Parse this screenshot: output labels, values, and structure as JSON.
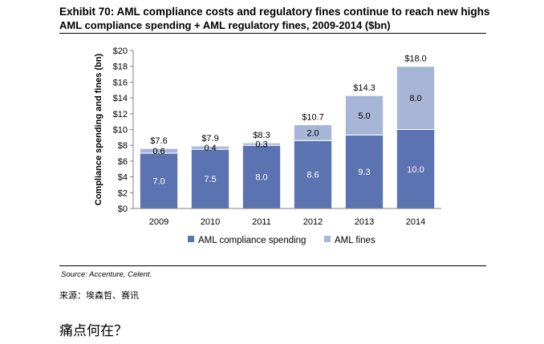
{
  "header": {
    "title": "Exhibit 70: AML compliance costs and regulatory fines continue to reach new highs",
    "subtitle": "AML compliance spending + AML regulatory fines, 2009-2014 ($bn)"
  },
  "chart_data": {
    "type": "bar",
    "stacked": true,
    "categories": [
      "2009",
      "2010",
      "2011",
      "2012",
      "2013",
      "2014"
    ],
    "series": [
      {
        "name": "AML compliance spending",
        "values": [
          7.0,
          7.5,
          8.0,
          8.6,
          9.3,
          10.0
        ],
        "labels": [
          "7.0",
          "7.5",
          "8.0",
          "8.6",
          "9.3",
          "10.0"
        ],
        "color": "#5b73b0"
      },
      {
        "name": "AML fines",
        "values": [
          0.6,
          0.4,
          0.3,
          2.0,
          5.0,
          8.0
        ],
        "labels": [
          "0.6",
          "0.4",
          "0.3",
          "2.0",
          "5.0",
          "8.0"
        ],
        "color": "#a7b6d6"
      }
    ],
    "totals": [
      "$7.6",
      "$7.9",
      "$8.3",
      "$10.7",
      "$14.3",
      "$18.0"
    ],
    "y_ticks": [
      "$0",
      "$2",
      "$4",
      "$6",
      "$8",
      "$10",
      "$12",
      "$14",
      "$16",
      "$18",
      "$20"
    ],
    "ylim": [
      0,
      20
    ],
    "ylabel": "Compliance spending and fines (bn)",
    "xlabel": "",
    "legend_position": "bottom",
    "grid": false
  },
  "footer": {
    "source": "Source: Accenture, Celent.",
    "cn_source": "来源：埃森哲、赛讯",
    "cn_heading": "痛点何在？"
  }
}
